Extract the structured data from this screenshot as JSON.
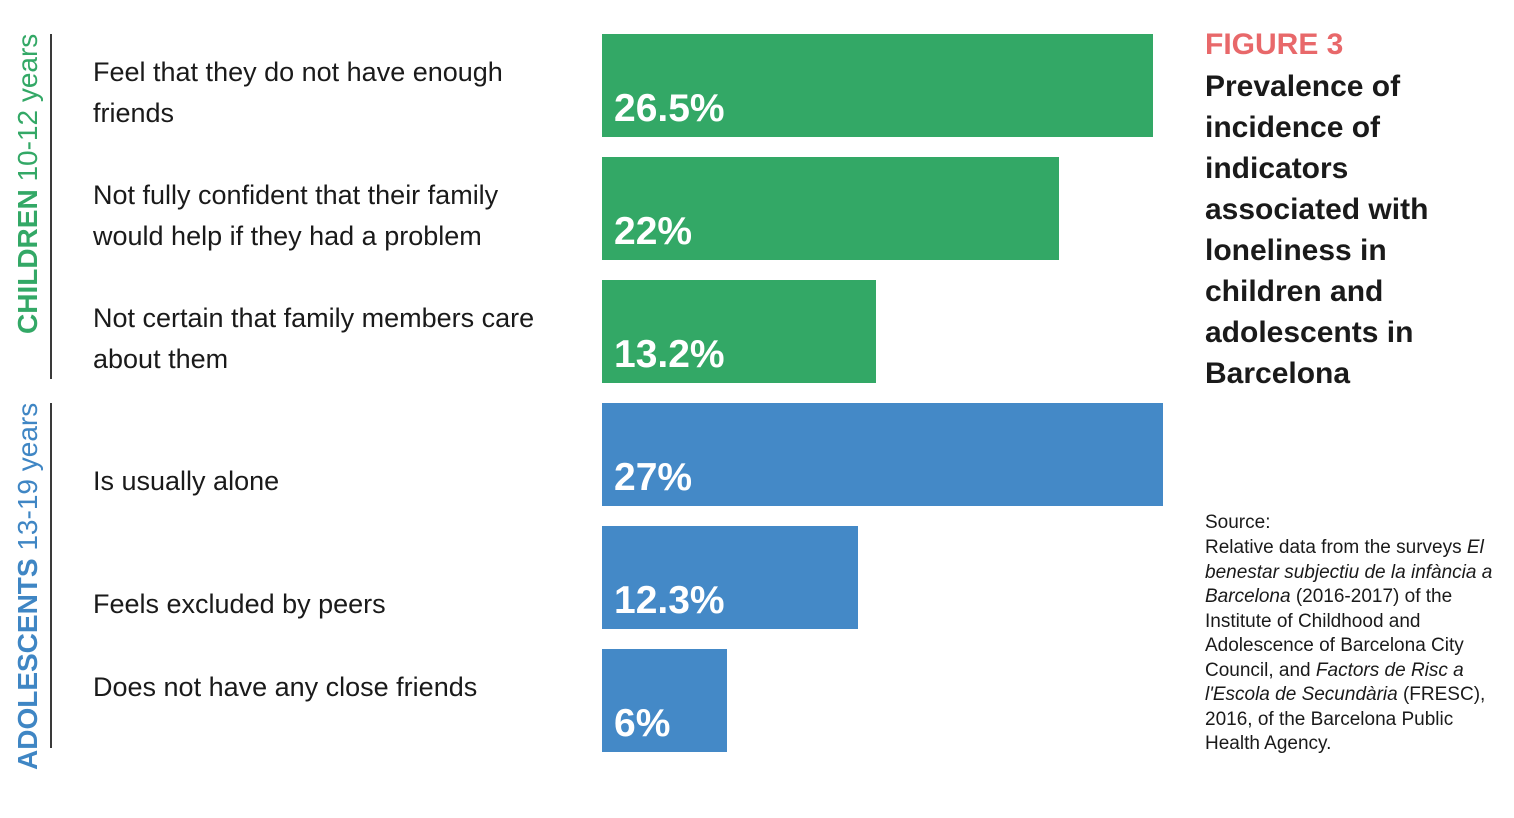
{
  "figure": {
    "number": "FIGURE 3",
    "title": "Prevalence of incidence of indicators associated with loneliness in children and adolescents in Barcelona"
  },
  "source": {
    "heading": "Source:",
    "parts": [
      {
        "text": "Relative data from the surveys ",
        "italic": false
      },
      {
        "text": "El benestar subjectiu de la infància a Barcelona",
        "italic": true
      },
      {
        "text": " (2016-2017) of the Institute of Childhood and Adolescence of Barcelona City Council, and ",
        "italic": false
      },
      {
        "text": "Factors de Risc a l'Escola de Secundària",
        "italic": true
      },
      {
        "text": " (FRESC), 2016, of the Barcelona Public Health Agency.",
        "italic": false
      }
    ]
  },
  "colors": {
    "children": "#33a866",
    "adolescents": "#4489c7",
    "children_label": "#33a866",
    "adolescents_label": "#3f86c4",
    "figure_number": "#e8686a"
  },
  "chart_data": {
    "type": "bar",
    "orientation": "horizontal",
    "xlim": [
      0,
      27
    ],
    "groups": [
      {
        "name": "CHILDREN",
        "age": "10-12 years",
        "color_key": "children"
      },
      {
        "name": "ADOLESCENTS",
        "age": "13-19 years",
        "color_key": "adolescents"
      }
    ],
    "categories": [
      "Feel that they do not have enough friends",
      "Not fully confident that their family would help if they had a problem",
      "Not certain that family members care about them",
      "Is usually alone",
      "Feels excluded by peers",
      "Does not have any close friends"
    ],
    "values": [
      26.5,
      22,
      13.2,
      27,
      12.3,
      6
    ],
    "value_labels": [
      "26.5%",
      "22%",
      "13.2%",
      "27%",
      "12.3%",
      "6%"
    ],
    "group_index": [
      0,
      0,
      0,
      1,
      1,
      1
    ]
  }
}
